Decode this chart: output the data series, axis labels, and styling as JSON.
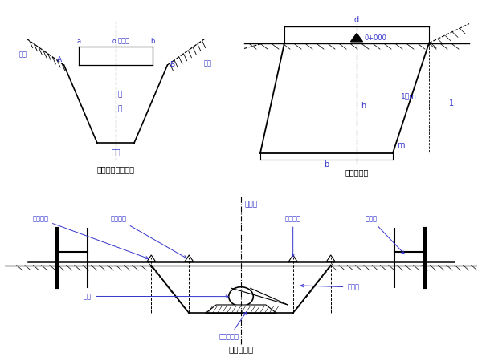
{
  "title1": "横断面测设示意图",
  "title2": "开槽断面图",
  "title3": "坡度桩设置",
  "label_zhongxinzhuang": "中心桩",
  "label_bianzhuang_left": "边桩",
  "label_bianzhuang_right": "边桩",
  "label_wa": "挖",
  "label_chen": "深",
  "label_diban": "底宽",
  "label_d": "d",
  "label_b": "b",
  "label_h": "h",
  "label_m": "m",
  "label_1m": "1：m",
  "label_i": "1",
  "label_0000": "0+000",
  "label_kaiwabianxian": "开挖边线",
  "label_lujibianxian": "路基边线",
  "label_zhongxinxian": "中心线",
  "label_goujibianxian": "沟基边线",
  "label_poduxuan": "坡度板",
  "label_shuguan": "水管",
  "label_hunningtu": "混凝土基础",
  "label_poduzhuang": "坡度钉",
  "bg_color": "#ffffff",
  "line_color": "#000000",
  "blue_color": "#3333cc"
}
